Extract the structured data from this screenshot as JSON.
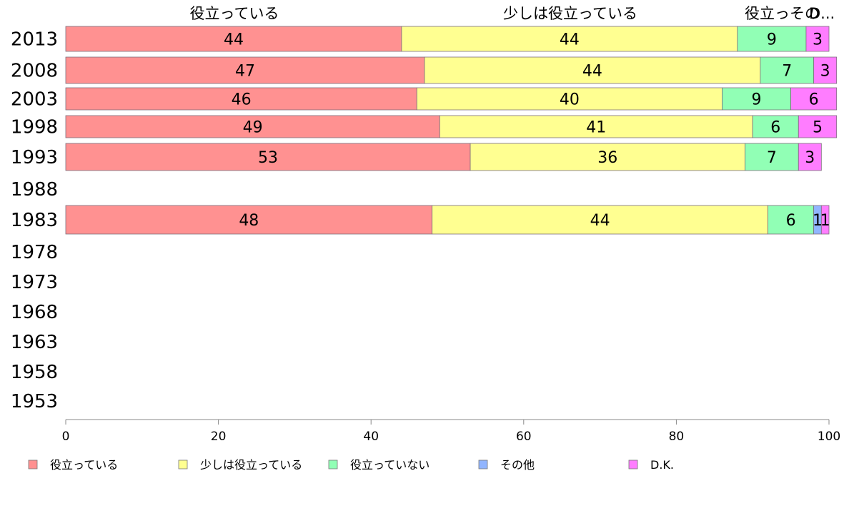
{
  "chart_data": {
    "type": "bar",
    "orientation": "horizontal",
    "stacked": true,
    "categories": [
      "2013",
      "2008",
      "2003",
      "1998",
      "1993",
      "1988",
      "1983",
      "1978",
      "1973",
      "1968",
      "1963",
      "1958",
      "1953"
    ],
    "series": [
      {
        "name": "役立っている",
        "color": "#ff9191",
        "values": [
          44,
          47,
          46,
          49,
          53,
          null,
          48,
          null,
          null,
          null,
          null,
          null,
          null
        ]
      },
      {
        "name": "少しは役立っている",
        "color": "#ffff91",
        "values": [
          44,
          44,
          40,
          41,
          36,
          null,
          44,
          null,
          null,
          null,
          null,
          null,
          null
        ]
      },
      {
        "name": "役立っていない",
        "color": "#91ffb5",
        "values": [
          9,
          7,
          9,
          6,
          7,
          null,
          6,
          null,
          null,
          null,
          null,
          null,
          null
        ]
      },
      {
        "name": "その他",
        "color": "#91b5ff",
        "values": [
          0,
          0,
          0,
          0,
          0,
          null,
          1,
          null,
          null,
          null,
          null,
          null,
          null
        ]
      },
      {
        "name": "D.K.",
        "color": "#ff7dff",
        "values": [
          3,
          3,
          6,
          5,
          3,
          null,
          1,
          null,
          null,
          null,
          null,
          null,
          null
        ]
      }
    ],
    "top_labels": [
      "役立っている",
      "少しは役立っている",
      "役立っそ",
      "の",
      "D..."
    ],
    "xlim": [
      0,
      100
    ],
    "x_ticks": [
      0,
      20,
      40,
      60,
      80,
      100
    ],
    "grid": false,
    "legend_position": "bottom"
  }
}
